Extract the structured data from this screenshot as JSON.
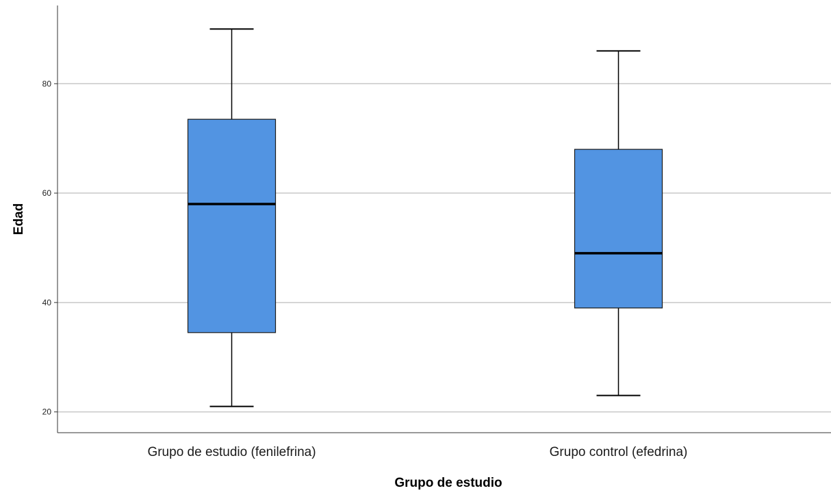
{
  "chart_data": {
    "type": "boxplot",
    "title": "",
    "xlabel": "Grupo de estudio",
    "ylabel": "Edad",
    "categories": [
      "Grupo de estudio (fenilefrina)",
      "Grupo control (efedrina)"
    ],
    "boxes": [
      {
        "category": "Grupo de estudio (fenilefrina)",
        "min": 21,
        "q1": 34.5,
        "median": 58,
        "q3": 73.5,
        "max": 90
      },
      {
        "category": "Grupo control (efedrina)",
        "min": 23,
        "q1": 39,
        "median": 49,
        "q3": 68,
        "max": 86
      }
    ],
    "yticks": [
      20,
      40,
      60,
      80
    ],
    "ylim": [
      16.2,
      94.3
    ],
    "grid": true,
    "box_color": "#5294E2"
  }
}
